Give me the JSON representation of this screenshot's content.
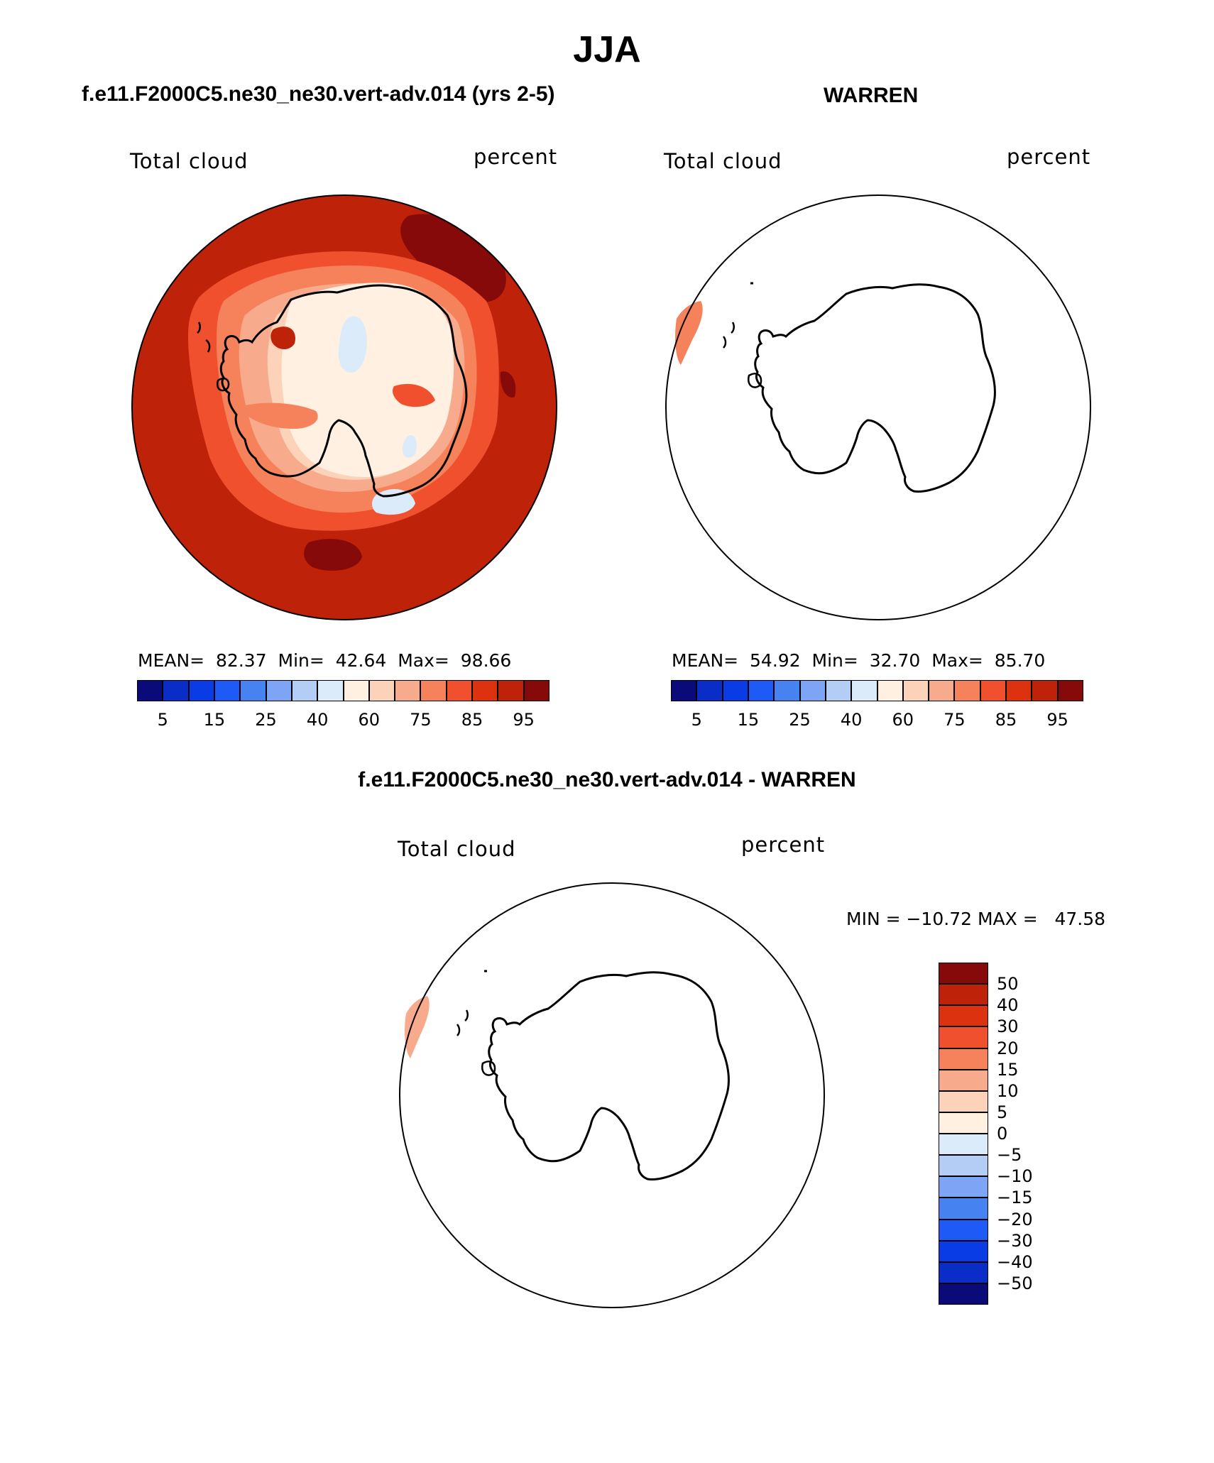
{
  "title": "JJA",
  "panels": [
    {
      "header": "f.e11.F2000C5.ne30_ne30.vert-adv.014 (yrs 2-5)",
      "variable": "Total cloud",
      "units": "percent",
      "stats": {
        "mean_label": "MEAN=",
        "mean": "82.37",
        "min_label": "Min=",
        "min": "42.64",
        "max_label": "Max=",
        "max": "98.66"
      }
    },
    {
      "header": "WARREN",
      "variable": "Total cloud",
      "units": "percent",
      "stats": {
        "mean_label": "MEAN=",
        "mean": "54.92",
        "min_label": "Min=",
        "min": "32.70",
        "max_label": "Max=",
        "max": "85.70"
      }
    },
    {
      "header": "f.e11.F2000C5.ne30_ne30.vert-adv.014 - WARREN",
      "variable": "Total cloud",
      "units": "percent",
      "minmax": "MIN = −10.72 MAX =   47.58"
    }
  ],
  "colorbar_abs": {
    "colors": [
      "#0a0a78",
      "#0a2dc8",
      "#0a3ce6",
      "#1e5af5",
      "#4682f0",
      "#7ea5f5",
      "#b4cdf5",
      "#dcebfa",
      "#fff0e1",
      "#fcd2b9",
      "#f8aa8c",
      "#f5825a",
      "#f0502d",
      "#dc3210",
      "#be230a",
      "#870a0a"
    ],
    "tick_labels": [
      "5",
      "15",
      "25",
      "40",
      "60",
      "75",
      "85",
      "95"
    ]
  },
  "colorbar_diff": {
    "colors": [
      "#870a0a",
      "#be230a",
      "#dc3210",
      "#f0502d",
      "#f5825a",
      "#f8aa8c",
      "#fcd2b9",
      "#fff0e1",
      "#dcebfa",
      "#b4cdf5",
      "#7ea5f5",
      "#4682f0",
      "#1e5af5",
      "#0a3ce6",
      "#0a2dc8",
      "#0a0a78"
    ],
    "tick_labels": [
      "50",
      "40",
      "30",
      "20",
      "15",
      "10",
      "5",
      "0",
      "−5",
      "−10",
      "−15",
      "−20",
      "−30",
      "−40",
      "−50"
    ]
  }
}
